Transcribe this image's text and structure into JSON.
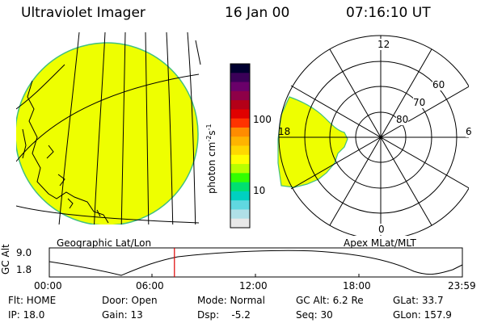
{
  "header": {
    "instrument": "Ultraviolet Imager",
    "date": "16 Jan 00",
    "time": "07:16:10 UT"
  },
  "colorbar": {
    "unit_label": "photon cm",
    "unit_exp1": "-2",
    "unit_s": "s",
    "unit_exp2": "-1",
    "tick_high": "100",
    "tick_low": "10",
    "colors": [
      "#000030",
      "#3a0058",
      "#6a006a",
      "#8e0048",
      "#b40018",
      "#e00000",
      "#ff3300",
      "#ff8c00",
      "#ffb400",
      "#ffd800",
      "#ffff00",
      "#b8ff00",
      "#33ff00",
      "#00e070",
      "#00d0c0",
      "#60d8e0",
      "#b0e0e8",
      "#e8e8e8"
    ]
  },
  "geo_panel": {
    "label": "Geographic Lat/Lon",
    "fill_color": "#eeff00"
  },
  "polar_panel": {
    "label": "Apex MLat/MLT",
    "mlt_12": "12",
    "mlt_6": "6",
    "mlt_18": "18",
    "mlt_0": "0",
    "lat_60": "60",
    "lat_70": "70",
    "lat_80": "80",
    "fill_color": "#eeff00"
  },
  "altitude_plot": {
    "ylabel": "GC Alt",
    "y_top": "9.0",
    "y_bottom": "1.8",
    "x_ticks": [
      "00:00",
      "06:00",
      "12:00",
      "18:00",
      "23:59"
    ],
    "current_time_hours": 7.27,
    "marker_color": "#dd0000"
  },
  "info": {
    "flt": "Flt: HOME",
    "ip": "IP: 18.0",
    "door": "Door: Open",
    "gain": "Gain: 13",
    "mode": "Mode: Normal",
    "dsp": "Dsp:    -5.2",
    "gcalt": "GC Alt: 6.2 Re",
    "seq": "Seq: 30",
    "glat": "GLat: 33.7",
    "glon": "GLon: 157.9"
  }
}
